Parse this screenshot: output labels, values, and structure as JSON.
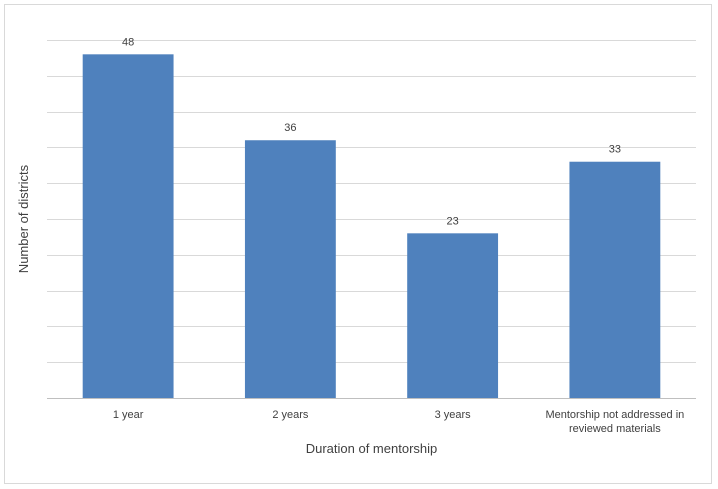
{
  "chart_data": {
    "type": "bar",
    "categories": [
      "1 year",
      "2 years",
      "3 years",
      "Mentorship not addressed in reviewed materials"
    ],
    "category_lines": [
      [
        "1 year"
      ],
      [
        "2 years"
      ],
      [
        "3 years"
      ],
      [
        "Mentorship not addressed in",
        "reviewed materials"
      ]
    ],
    "values": [
      48,
      36,
      23,
      33
    ],
    "title": "",
    "xlabel": "Duration of mentorship",
    "ylabel": "Number of districts",
    "ylim": [
      0,
      50
    ],
    "y_gridline_step": 5,
    "y_tick_labels_shown": false,
    "grid": true,
    "legend": "none",
    "bar_color": "#4f81bd"
  }
}
